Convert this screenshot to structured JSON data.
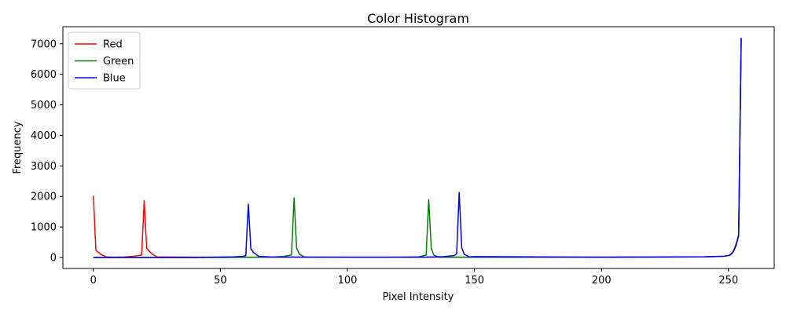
{
  "chart_data": {
    "type": "line",
    "title": "Color Histogram",
    "xlabel": "Pixel Intensity",
    "ylabel": "Frequency",
    "xlim": [
      -12,
      268
    ],
    "ylim": [
      -360,
      7560
    ],
    "xticks": [
      0,
      50,
      100,
      150,
      200,
      250
    ],
    "yticks": [
      0,
      1000,
      2000,
      3000,
      4000,
      5000,
      6000,
      7000
    ],
    "legend": "upper-left",
    "grid": false,
    "series": [
      {
        "name": "Red",
        "color": "#ff0000",
        "x": [
          0,
          1,
          3,
          5,
          8,
          12,
          16,
          19,
          20,
          21,
          23,
          25,
          30,
          40,
          60,
          100,
          150,
          200,
          240,
          248,
          250,
          251,
          252,
          253,
          254,
          255
        ],
        "y": [
          2020,
          230,
          100,
          20,
          10,
          15,
          40,
          80,
          1860,
          300,
          120,
          20,
          15,
          10,
          10,
          10,
          10,
          10,
          20,
          40,
          60,
          120,
          220,
          450,
          700,
          7150
        ]
      },
      {
        "name": "Green",
        "color": "#008000",
        "x": [
          0,
          50,
          70,
          75,
          78,
          79,
          80,
          81,
          83,
          85,
          100,
          120,
          128,
          131,
          132,
          133,
          134,
          136,
          140,
          150,
          200,
          240,
          248,
          250,
          251,
          252,
          253,
          254,
          255
        ],
        "y": [
          0,
          0,
          10,
          40,
          80,
          1950,
          320,
          120,
          15,
          10,
          5,
          5,
          20,
          80,
          1900,
          300,
          80,
          10,
          10,
          10,
          10,
          20,
          40,
          60,
          100,
          200,
          400,
          700,
          7150
        ],
        "z": 1
      },
      {
        "name": "Blue",
        "color": "#0000ff",
        "x": [
          0,
          20,
          40,
          55,
          59,
          60,
          61,
          62,
          63,
          65,
          70,
          100,
          130,
          138,
          142,
          143,
          144,
          145,
          146,
          148,
          150,
          200,
          240,
          248,
          250,
          251,
          252,
          253,
          254,
          255
        ],
        "y": [
          0,
          0,
          0,
          20,
          40,
          60,
          1750,
          280,
          170,
          40,
          15,
          10,
          10,
          30,
          60,
          120,
          2130,
          320,
          100,
          20,
          30,
          10,
          20,
          40,
          60,
          100,
          200,
          400,
          750,
          7200
        ]
      }
    ]
  }
}
